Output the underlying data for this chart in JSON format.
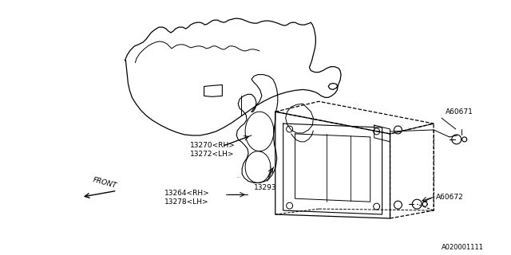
{
  "background_color": "#ffffff",
  "line_color": "#000000",
  "text_color": "#000000",
  "diagram_id": "A020001111",
  "labels": {
    "part1": "13270<RH>",
    "part2": "13272<LH>",
    "part3": "13293",
    "part4": "13264<RH>",
    "part5": "13278<LH>",
    "part6": "A60671",
    "part7": "A60672"
  }
}
